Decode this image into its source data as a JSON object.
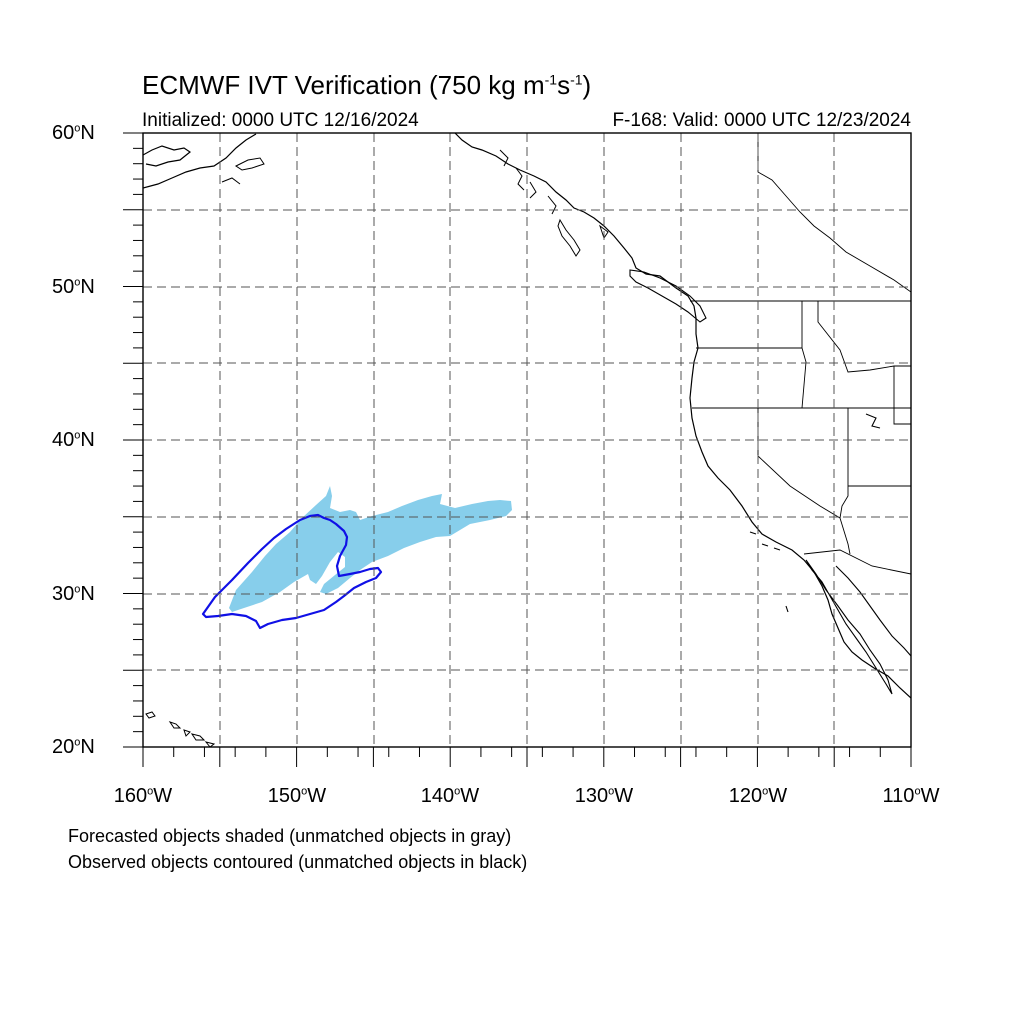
{
  "title": {
    "main": "ECMWF IVT Verification (750 kg m",
    "exp1": "-1",
    "mid": "s",
    "exp2": "-1",
    "close": ")"
  },
  "subtitle_left": "Initialized: 0000 UTC 12/16/2024",
  "subtitle_right": "F-168: Valid: 0000 UTC 12/23/2024",
  "lat_labels": [
    {
      "value": "60",
      "deg": "o",
      "hemi": "N"
    },
    {
      "value": "50",
      "deg": "o",
      "hemi": "N"
    },
    {
      "value": "40",
      "deg": "o",
      "hemi": "N"
    },
    {
      "value": "30",
      "deg": "o",
      "hemi": "N"
    },
    {
      "value": "20",
      "deg": "o",
      "hemi": "N"
    }
  ],
  "lon_labels": [
    {
      "value": "160",
      "deg": "o",
      "hemi": "W"
    },
    {
      "value": "150",
      "deg": "o",
      "hemi": "W"
    },
    {
      "value": "140",
      "deg": "o",
      "hemi": "W"
    },
    {
      "value": "130",
      "deg": "o",
      "hemi": "W"
    },
    {
      "value": "120",
      "deg": "o",
      "hemi": "W"
    },
    {
      "value": "110",
      "deg": "o",
      "hemi": "W"
    }
  ],
  "legend_notes": {
    "forecast": "Forecasted objects shaded (unmatched objects in gray)",
    "observed": "Observed objects contoured (unmatched objects in black)"
  },
  "map_extent": {
    "lon_min": -160,
    "lon_max": -110,
    "lat_min": 20,
    "lat_max": 60
  },
  "colors": {
    "forecast_fill": "#87ceeb",
    "observed_contour": "#1010e6",
    "coastline": "#000000",
    "grid": "#555555"
  }
}
